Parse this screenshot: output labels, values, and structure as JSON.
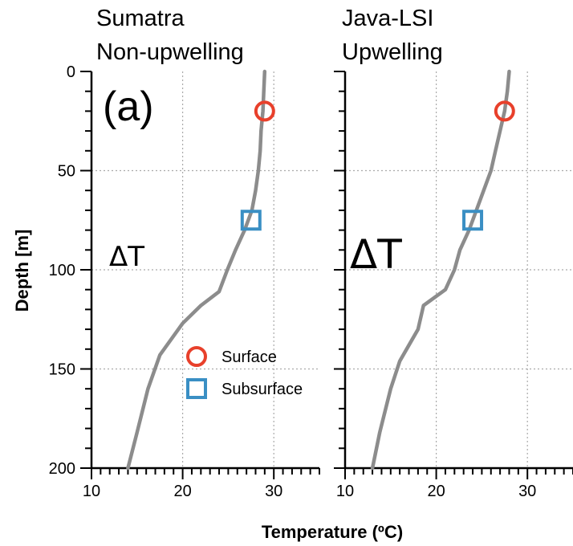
{
  "chart_data": [
    {
      "type": "line",
      "title_lines": [
        "Sumatra",
        "Non-upwelling"
      ],
      "panel_label": "(a)",
      "annotation": "ΔT",
      "xlabel": "Temperature (ºC)",
      "ylabel": "Depth [m]",
      "xlim": [
        10,
        35
      ],
      "ylim": [
        200,
        0
      ],
      "x_ticks": [
        10,
        20,
        30
      ],
      "y_ticks": [
        0,
        50,
        100,
        150,
        200
      ],
      "grid": true,
      "series": [
        {
          "points": [
            {
              "x": 29.0,
              "y": 0
            },
            {
              "x": 28.9,
              "y": 10
            },
            {
              "x": 28.8,
              "y": 20
            },
            {
              "x": 28.6,
              "y": 30
            },
            {
              "x": 28.5,
              "y": 40
            },
            {
              "x": 28.3,
              "y": 50
            },
            {
              "x": 28.0,
              "y": 60
            },
            {
              "x": 27.6,
              "y": 70
            },
            {
              "x": 26.8,
              "y": 80
            },
            {
              "x": 25.8,
              "y": 90
            },
            {
              "x": 24.9,
              "y": 100
            },
            {
              "x": 24.0,
              "y": 111
            },
            {
              "x": 22.0,
              "y": 118
            },
            {
              "x": 20.0,
              "y": 127
            },
            {
              "x": 17.5,
              "y": 143
            },
            {
              "x": 16.2,
              "y": 160
            },
            {
              "x": 15.0,
              "y": 182
            },
            {
              "x": 14.0,
              "y": 200
            }
          ]
        }
      ],
      "markers": [
        {
          "label": "Surface",
          "shape": "circle",
          "color": "#e8402b",
          "x": 29.0,
          "y": 20
        },
        {
          "label": "Subsurface",
          "shape": "square",
          "color": "#3a8fc4",
          "x": 27.5,
          "y": 75
        }
      ],
      "legend": {
        "placement": "lower-right",
        "entries": [
          {
            "label": "Surface",
            "shape": "circle",
            "color": "#e8402b"
          },
          {
            "label": "Subsurface",
            "shape": "square",
            "color": "#3a8fc4"
          }
        ]
      }
    },
    {
      "type": "line",
      "title_lines": [
        "Java-LSI",
        "Upwelling"
      ],
      "annotation": "ΔT",
      "xlim": [
        10,
        35
      ],
      "ylim": [
        200,
        0
      ],
      "x_ticks": [
        10,
        20,
        30
      ],
      "grid": true,
      "series": [
        {
          "points": [
            {
              "x": 28.0,
              "y": 0
            },
            {
              "x": 27.8,
              "y": 10
            },
            {
              "x": 27.5,
              "y": 20
            },
            {
              "x": 27.0,
              "y": 30
            },
            {
              "x": 26.5,
              "y": 40
            },
            {
              "x": 26.0,
              "y": 50
            },
            {
              "x": 25.2,
              "y": 60
            },
            {
              "x": 24.4,
              "y": 70
            },
            {
              "x": 23.6,
              "y": 80
            },
            {
              "x": 22.6,
              "y": 90
            },
            {
              "x": 22.0,
              "y": 100
            },
            {
              "x": 21.0,
              "y": 110
            },
            {
              "x": 18.6,
              "y": 118
            },
            {
              "x": 18.0,
              "y": 130
            },
            {
              "x": 16.0,
              "y": 146
            },
            {
              "x": 15.0,
              "y": 160
            },
            {
              "x": 13.8,
              "y": 182
            },
            {
              "x": 13.0,
              "y": 200
            }
          ]
        }
      ],
      "markers": [
        {
          "label": "Surface",
          "shape": "circle",
          "color": "#e8402b",
          "x": 27.5,
          "y": 20
        },
        {
          "label": "Subsurface",
          "shape": "square",
          "color": "#3a8fc4",
          "x": 24.0,
          "y": 75
        }
      ]
    }
  ]
}
